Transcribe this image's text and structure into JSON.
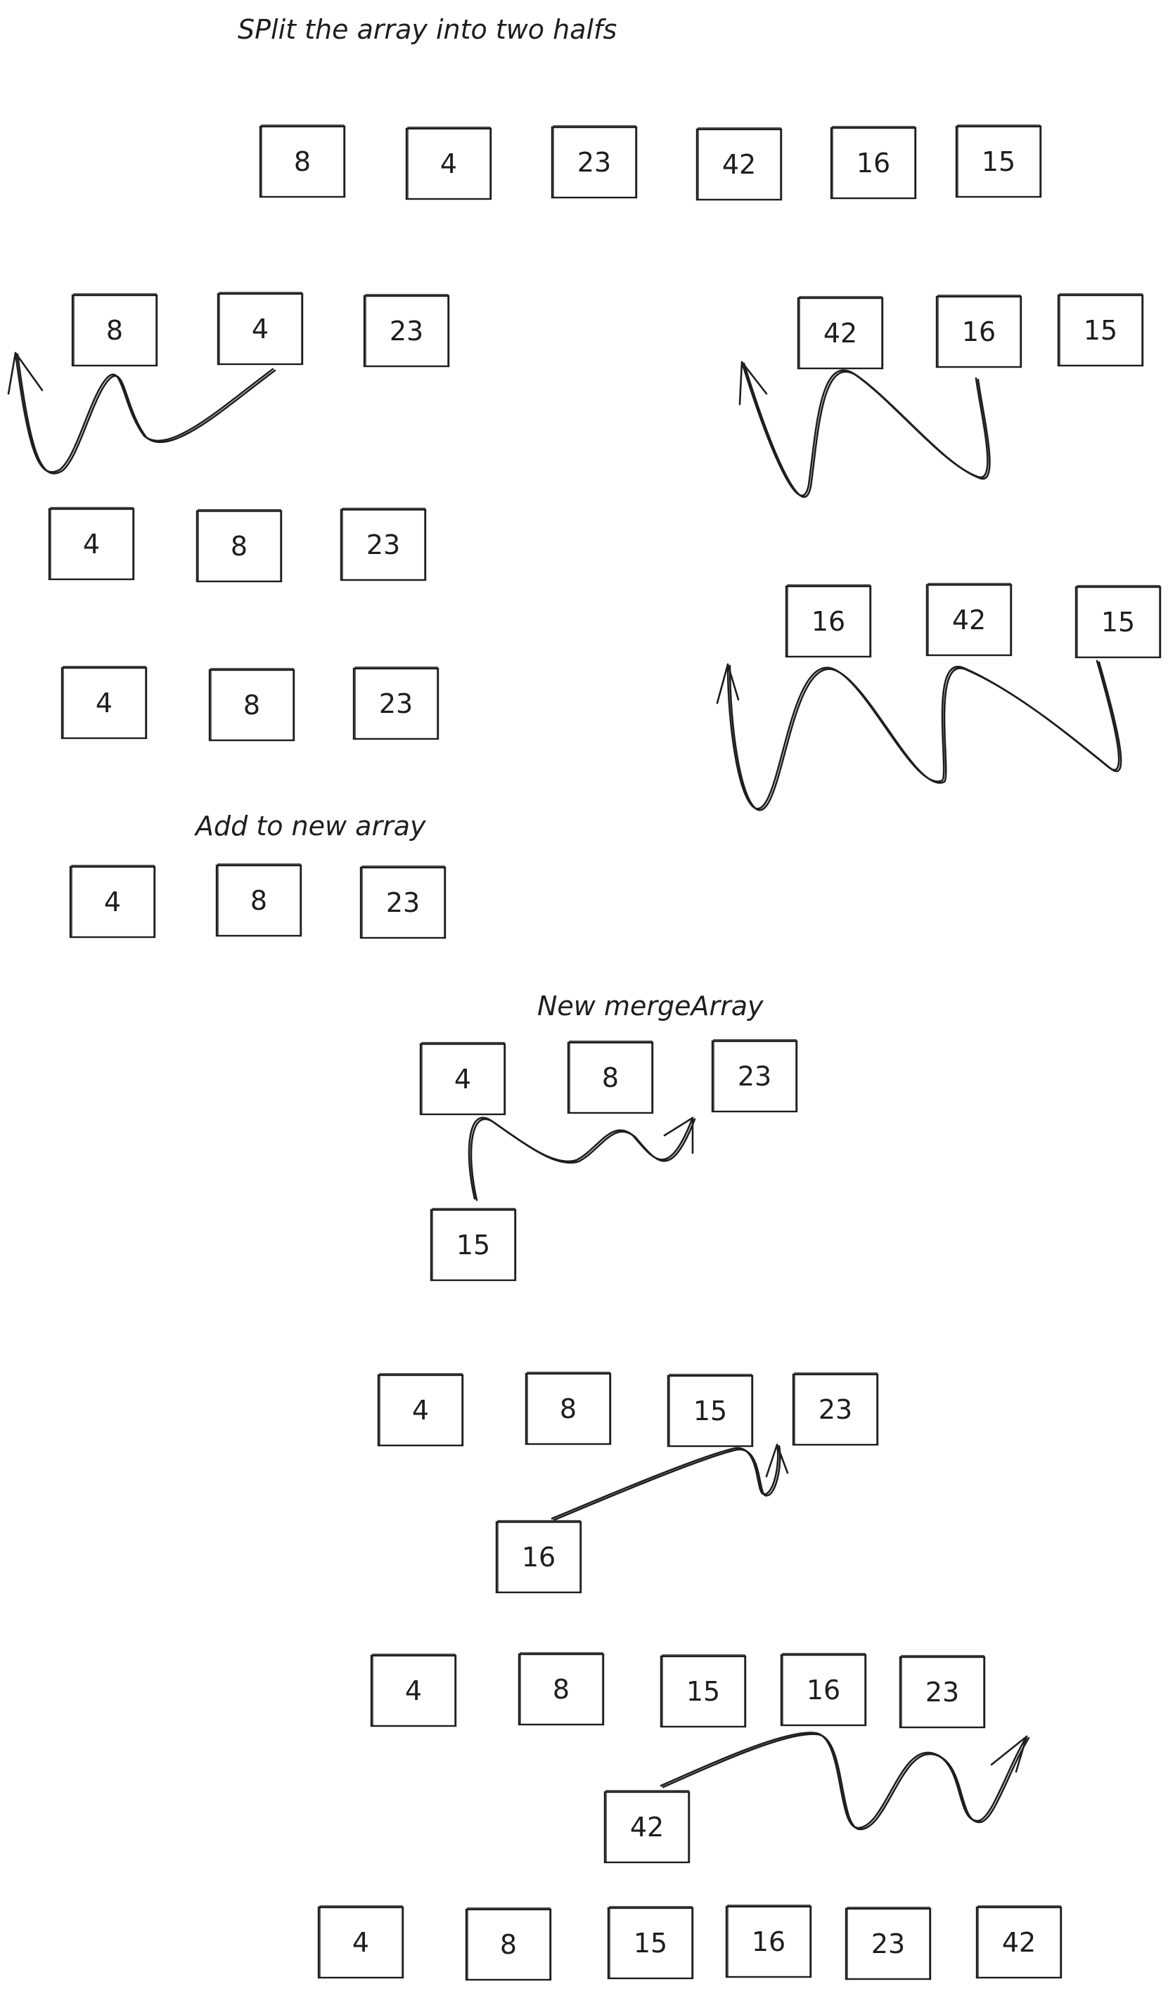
{
  "labels": {
    "split": "SPlit the array into two halfs",
    "add_new": "Add to new array",
    "new_merge": "New mergeArray"
  },
  "rows": [
    {
      "id": "initial",
      "values": [
        "8",
        "4",
        "23",
        "42",
        "16",
        "15"
      ]
    },
    {
      "id": "left-half",
      "values": [
        "8",
        "4",
        "23"
      ]
    },
    {
      "id": "right-half",
      "values": [
        "42",
        "16",
        "15"
      ]
    },
    {
      "id": "left-swapped",
      "values": [
        "4",
        "8",
        "23"
      ]
    },
    {
      "id": "right-swapped",
      "values": [
        "16",
        "42",
        "15"
      ]
    },
    {
      "id": "left-sorted",
      "values": [
        "4",
        "8",
        "23"
      ]
    },
    {
      "id": "left-added",
      "values": [
        "4",
        "8",
        "23"
      ]
    },
    {
      "id": "merge-1",
      "values": [
        "4",
        "8",
        "23"
      ]
    },
    {
      "id": "insert-15",
      "values": [
        "15"
      ]
    },
    {
      "id": "merge-2",
      "values": [
        "4",
        "8",
        "15",
        "23"
      ]
    },
    {
      "id": "insert-16",
      "values": [
        "16"
      ]
    },
    {
      "id": "merge-3",
      "values": [
        "4",
        "8",
        "15",
        "16",
        "23"
      ]
    },
    {
      "id": "insert-42",
      "values": [
        "42"
      ]
    },
    {
      "id": "final",
      "values": [
        "4",
        "8",
        "15",
        "16",
        "23",
        "42"
      ]
    }
  ],
  "colors": {
    "stroke": "#1e1e1e",
    "background": "#ffffff"
  }
}
